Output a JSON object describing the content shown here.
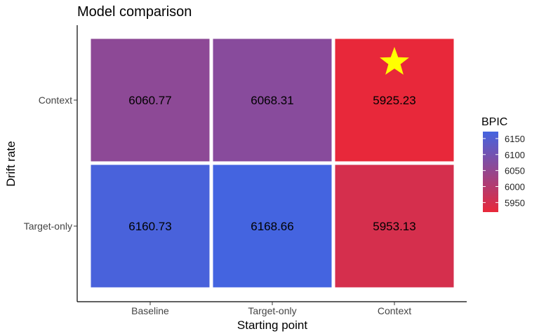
{
  "chart_data": {
    "type": "heatmap",
    "title": "Model comparison",
    "xlabel": "Starting point",
    "ylabel": "Drift rate",
    "x_categories": [
      "Baseline",
      "Target-only",
      "Context"
    ],
    "y_categories": [
      "Context",
      "Target-only"
    ],
    "values": [
      [
        6060.77,
        6068.31,
        5925.23
      ],
      [
        6160.73,
        6168.66,
        5953.13
      ]
    ],
    "value_labels": [
      [
        "6060.77",
        "6068.31",
        "5925.23"
      ],
      [
        "6160.73",
        "6168.66",
        "5953.13"
      ]
    ],
    "best_marker": {
      "row": 0,
      "col": 2,
      "symbol": "star",
      "color": "#ffff00"
    },
    "legend": {
      "title": "BPIC",
      "position": "right",
      "ticks": [
        "6150",
        "6100",
        "6050",
        "6000",
        "5950"
      ],
      "tick_values": [
        6150,
        6100,
        6050,
        6000,
        5950
      ],
      "range": [
        5925.23,
        6168.66
      ],
      "low_color": "#e8283a",
      "high_color": "#4464e0"
    },
    "grid": false
  }
}
